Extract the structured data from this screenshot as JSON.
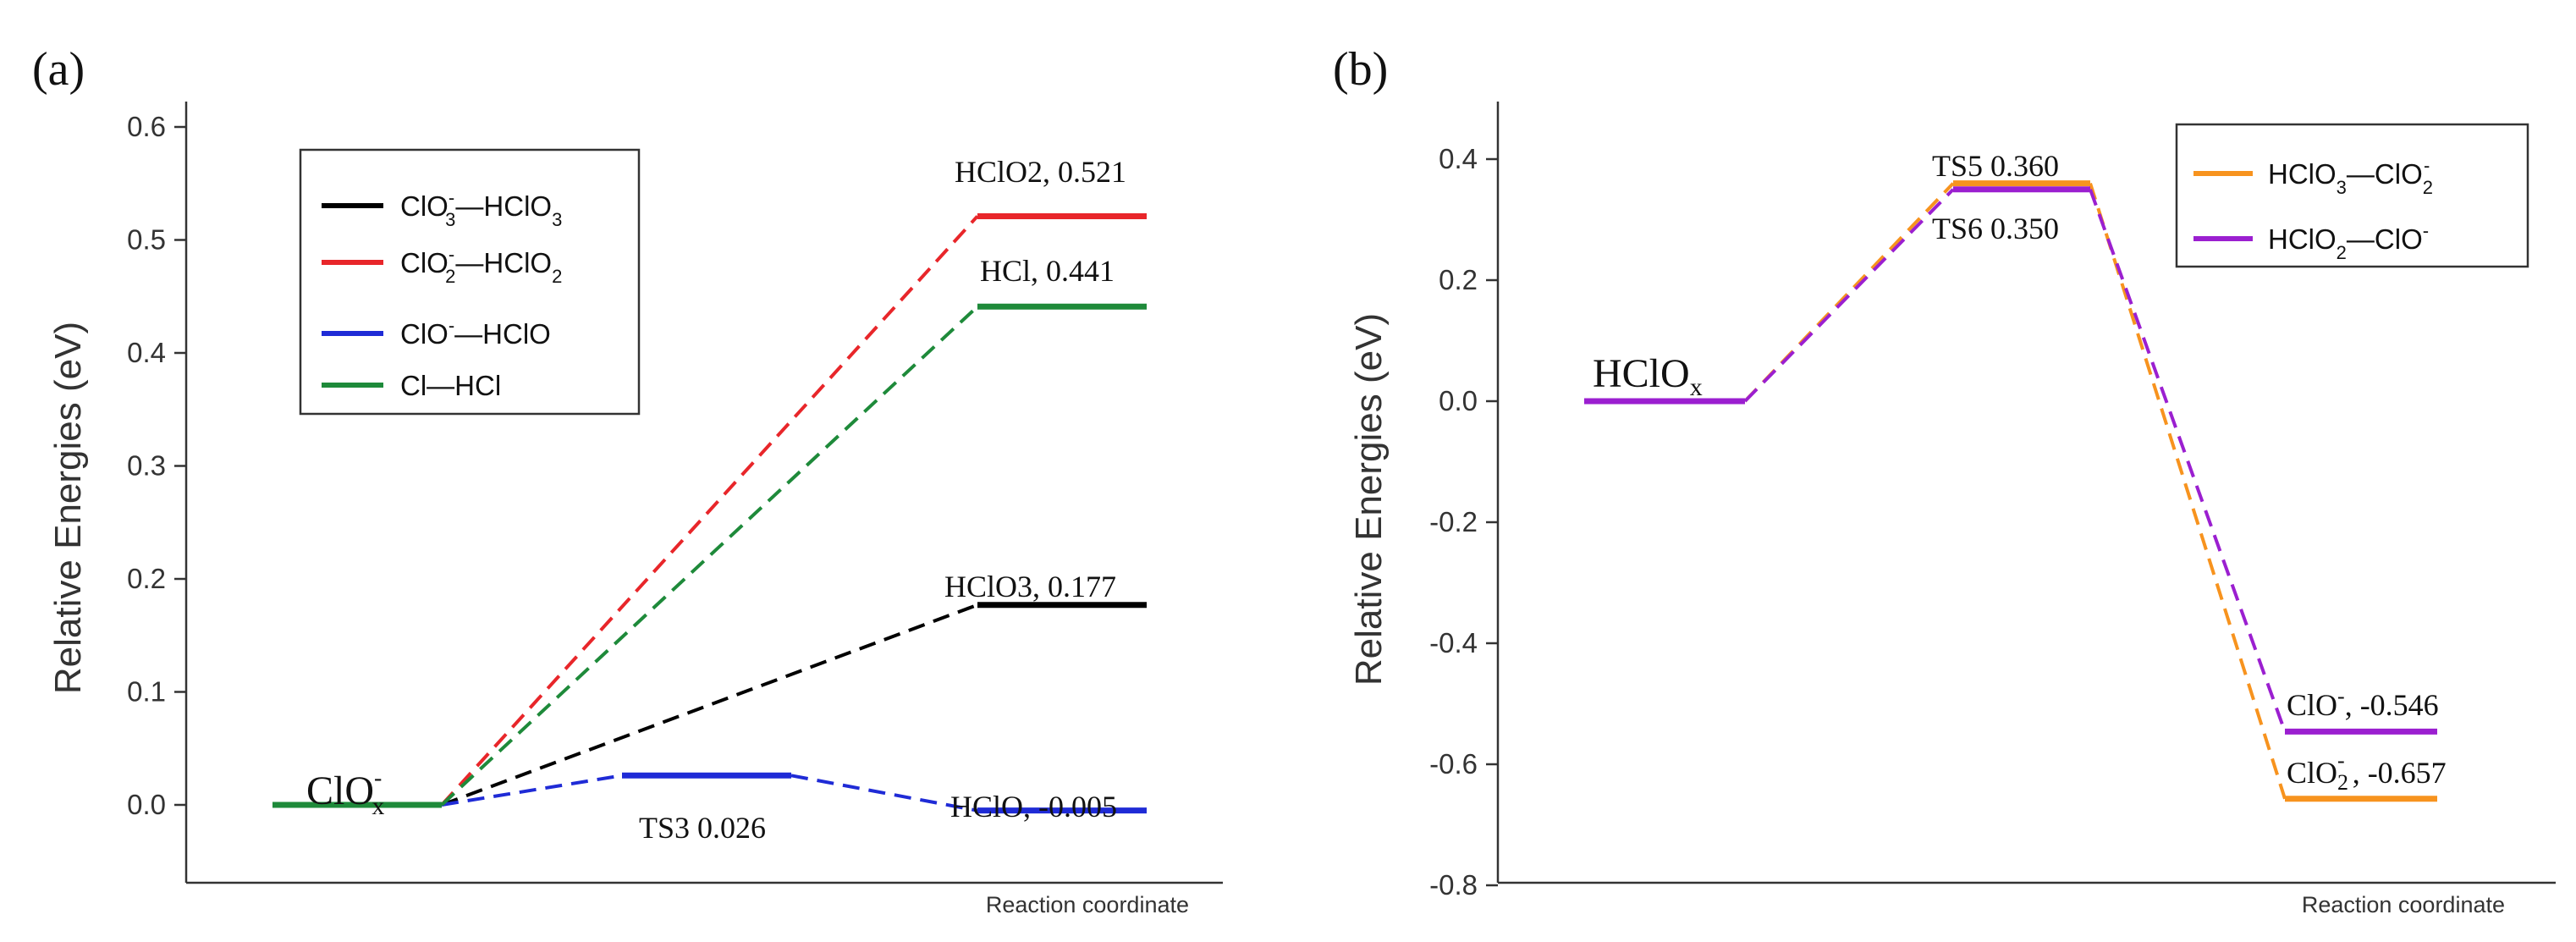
{
  "chart_data": [
    {
      "panel": "(a)",
      "type": "line",
      "title": "",
      "xlabel": "Reaction coordinate",
      "ylabel": "Relative Energies (eV)",
      "ylim": [
        -0.05,
        0.6
      ],
      "yticks": [
        0.0,
        0.1,
        0.2,
        0.3,
        0.4,
        0.5,
        0.6
      ],
      "ytick_labels": [
        "0.0",
        "0.1",
        "0.2",
        "0.3",
        "0.4",
        "0.5",
        "0.6"
      ],
      "x_positions": [
        "start",
        "TS",
        "product"
      ],
      "start_label": "ClO",
      "start_label_sup": "-",
      "start_label_sub": "x",
      "legend": [
        {
          "label": "ClO3⁻—HClO3",
          "color": "#000000"
        },
        {
          "label": "ClO2⁻—HClO2",
          "color": "#e8262a"
        },
        {
          "label": "ClO⁻—HClO",
          "color": "#1f2bd6"
        },
        {
          "label": "Cl—HCl",
          "color": "#1e8a3a"
        }
      ],
      "series": [
        {
          "name": "ClO3⁻—HClO3",
          "color": "#000000",
          "points": [
            {
              "x": "start",
              "y": 0.0
            },
            {
              "x": "product",
              "y": 0.177,
              "label": "HClO3, 0.177"
            }
          ]
        },
        {
          "name": "ClO2⁻—HClO2",
          "color": "#e8262a",
          "points": [
            {
              "x": "start",
              "y": 0.0
            },
            {
              "x": "product",
              "y": 0.521,
              "label": "HClO2, 0.521"
            }
          ]
        },
        {
          "name": "ClO⁻—HClO",
          "color": "#1f2bd6",
          "points": [
            {
              "x": "start",
              "y": 0.0
            },
            {
              "x": "TS",
              "y": 0.026,
              "label": "TS3 0.026"
            },
            {
              "x": "product",
              "y": -0.005,
              "label": "HClO, -0.005"
            }
          ]
        },
        {
          "name": "Cl—HCl",
          "color": "#1e8a3a",
          "points": [
            {
              "x": "start",
              "y": 0.0
            },
            {
              "x": "product",
              "y": 0.441,
              "label": "HCl, 0.441"
            }
          ]
        }
      ]
    },
    {
      "panel": "(b)",
      "type": "line",
      "title": "",
      "xlabel": "Reaction coordinate",
      "ylabel": "Relative Energies (eV)",
      "ylim": [
        -0.8,
        0.5
      ],
      "yticks": [
        -0.8,
        -0.6,
        -0.4,
        -0.2,
        0.0,
        0.2,
        0.4
      ],
      "ytick_labels": [
        "-0.8",
        "-0.6",
        "-0.4",
        "-0.2",
        "0.0",
        "0.2",
        "0.4"
      ],
      "x_positions": [
        "start",
        "TS",
        "product"
      ],
      "start_label": "HClO",
      "start_label_sub": "x",
      "legend": [
        {
          "label": "HClO3—ClO2⁻",
          "color": "#f7931e"
        },
        {
          "label": "HClO2—ClO⁻",
          "color": "#9b1fd0"
        }
      ],
      "series": [
        {
          "name": "HClO3—ClO2⁻",
          "color": "#f7931e",
          "points": [
            {
              "x": "start",
              "y": 0.0
            },
            {
              "x": "TS",
              "y": 0.36,
              "label": "TS5 0.360"
            },
            {
              "x": "product",
              "y": -0.657,
              "label": "ClO2⁻ , -0.657"
            }
          ]
        },
        {
          "name": "HClO2—ClO⁻",
          "color": "#9b1fd0",
          "points": [
            {
              "x": "start",
              "y": 0.0
            },
            {
              "x": "TS",
              "y": 0.35,
              "label": "TS6 0.350"
            },
            {
              "x": "product",
              "y": -0.546,
              "label": "ClO⁻, -0.546"
            }
          ]
        }
      ]
    }
  ]
}
